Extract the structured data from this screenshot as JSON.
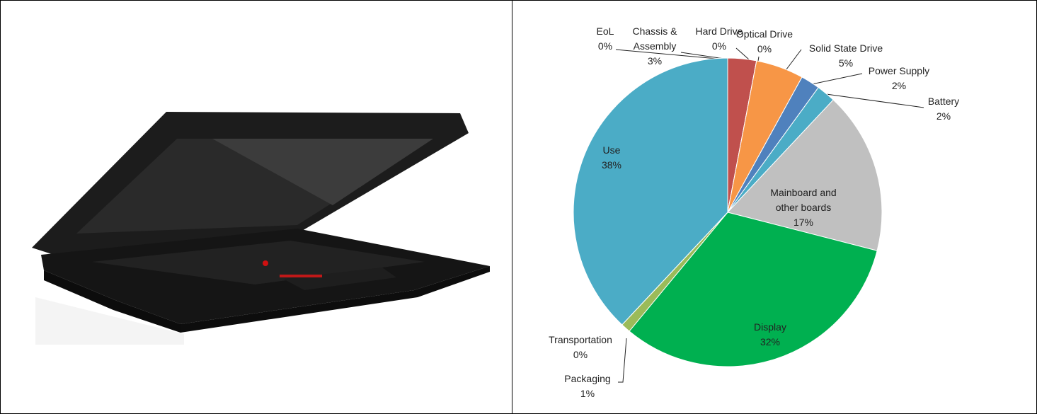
{
  "chart_data": {
    "type": "pie",
    "categories": [
      "EoL",
      "Chassis & Assembly",
      "Hard Drive",
      "Optical Drive",
      "Solid State Drive",
      "Power Supply",
      "Battery",
      "Mainboard and other boards",
      "Display",
      "Packaging",
      "Transportation",
      "Use"
    ],
    "values": [
      0,
      3,
      0,
      0,
      5,
      2,
      2,
      17,
      32,
      1,
      0,
      38
    ],
    "value_labels": [
      "0%",
      "3%",
      "0%",
      "0%",
      "5%",
      "2%",
      "2%",
      "17%",
      "32%",
      "1%",
      "0%",
      "38%"
    ],
    "colors": [
      "#f79646",
      "#c0504d",
      "#9bbb59",
      "#8064a2",
      "#f79646",
      "#4f81bd",
      "#4bacc6",
      "#c0c0c0",
      "#00b050",
      "#9bbb59",
      "#8064a2",
      "#4bacc6"
    ]
  }
}
